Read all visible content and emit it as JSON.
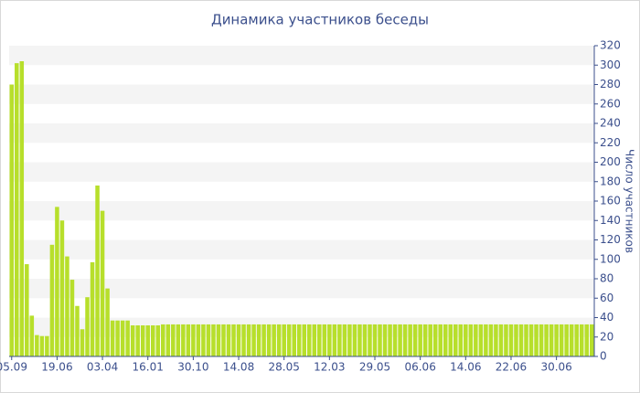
{
  "chart_data": {
    "type": "bar",
    "title": "Динамика участников беседы",
    "y_label": "Число участников",
    "categories": [
      "05.09",
      null,
      null,
      null,
      null,
      null,
      null,
      null,
      null,
      "19.06",
      null,
      null,
      null,
      null,
      null,
      null,
      null,
      null,
      "03.04",
      null,
      null,
      null,
      null,
      null,
      null,
      null,
      null,
      "16.01",
      null,
      null,
      null,
      null,
      null,
      null,
      null,
      null,
      "30.10",
      null,
      null,
      null,
      null,
      null,
      null,
      null,
      null,
      "14.08",
      null,
      null,
      null,
      null,
      null,
      null,
      null,
      null,
      "28.05",
      null,
      null,
      null,
      null,
      null,
      null,
      null,
      null,
      "12.03",
      null,
      null,
      null,
      null,
      null,
      null,
      null,
      null,
      "29.05",
      null,
      null,
      null,
      null,
      null,
      null,
      null,
      null,
      "06.06",
      null,
      null,
      null,
      null,
      null,
      null,
      null,
      null,
      "14.06",
      null,
      null,
      null,
      null,
      null,
      null,
      null,
      null,
      "22.06",
      null,
      null,
      null,
      null,
      null,
      null,
      null,
      null,
      "30.06",
      null,
      null,
      null,
      null,
      null,
      null,
      null
    ],
    "values": [
      280,
      302,
      304,
      95,
      42,
      22,
      21,
      21,
      115,
      154,
      140,
      103,
      79,
      52,
      28,
      61,
      97,
      176,
      150,
      70,
      37,
      37,
      37,
      37,
      32,
      32,
      32,
      32,
      32,
      32,
      33,
      33,
      33,
      33,
      33,
      33,
      33,
      33,
      33,
      33,
      33,
      33,
      33,
      33,
      33,
      33,
      33,
      33,
      33,
      33,
      33,
      33,
      33,
      33,
      33,
      33,
      33,
      33,
      33,
      33,
      33,
      33,
      33,
      33,
      33,
      33,
      33,
      33,
      33,
      33,
      33,
      33,
      33,
      33,
      33,
      33,
      33,
      33,
      33,
      33,
      33,
      33,
      33,
      33,
      33,
      33,
      33,
      33,
      33,
      33,
      33,
      33,
      33,
      33,
      33,
      33,
      33,
      33,
      33,
      33,
      33,
      33,
      33,
      33,
      33,
      33,
      33,
      33,
      33,
      33,
      33,
      33,
      33,
      33,
      33,
      33
    ],
    "color": "#b7df2b",
    "ylim": [
      0,
      320
    ],
    "yticks": [
      0,
      20,
      40,
      60,
      80,
      100,
      120,
      140,
      160,
      180,
      200,
      220,
      240,
      260,
      280,
      300,
      320
    ],
    "grid": true
  }
}
